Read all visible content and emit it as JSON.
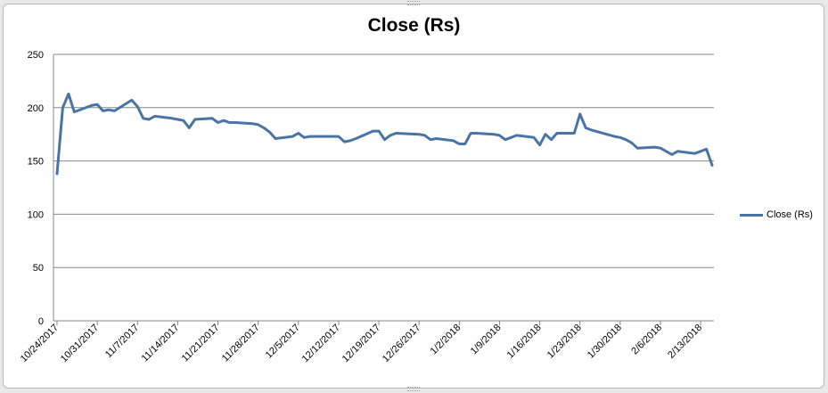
{
  "chart_data": {
    "type": "line",
    "title": "Close (Rs)",
    "xlabel": "",
    "ylabel": "",
    "ylim": [
      0,
      250
    ],
    "yticks": [
      0,
      50,
      100,
      150,
      200,
      250
    ],
    "grid": true,
    "legend_position": "right",
    "line_color": "#4a74a3",
    "xtick_labels": [
      "10/24/2017",
      "10/31/2017",
      "11/7/2017",
      "11/14/2017",
      "11/21/2017",
      "11/28/2017",
      "12/5/2017",
      "12/12/2017",
      "12/19/2017",
      "12/26/2017",
      "1/2/2018",
      "1/9/2018",
      "1/16/2018",
      "1/23/2018",
      "1/30/2018",
      "2/6/2018",
      "2/13/2018"
    ],
    "series": [
      {
        "name": "Close (Rs)",
        "x": [
          "2017-10-24",
          "2017-10-25",
          "2017-10-26",
          "2017-10-27",
          "2017-10-30",
          "2017-10-31",
          "2017-11-01",
          "2017-11-02",
          "2017-11-03",
          "2017-11-06",
          "2017-11-07",
          "2017-11-08",
          "2017-11-09",
          "2017-11-10",
          "2017-11-13",
          "2017-11-14",
          "2017-11-15",
          "2017-11-16",
          "2017-11-17",
          "2017-11-20",
          "2017-11-21",
          "2017-11-22",
          "2017-11-23",
          "2017-11-24",
          "2017-11-27",
          "2017-11-28",
          "2017-11-29",
          "2017-11-30",
          "2017-12-01",
          "2017-12-04",
          "2017-12-05",
          "2017-12-06",
          "2017-12-07",
          "2017-12-08",
          "2017-12-11",
          "2017-12-12",
          "2017-12-13",
          "2017-12-14",
          "2017-12-15",
          "2017-12-18",
          "2017-12-19",
          "2017-12-20",
          "2017-12-21",
          "2017-12-22",
          "2017-12-26",
          "2017-12-27",
          "2017-12-28",
          "2017-12-29",
          "2018-01-01",
          "2018-01-02",
          "2018-01-03",
          "2018-01-04",
          "2018-01-05",
          "2018-01-08",
          "2018-01-09",
          "2018-01-10",
          "2018-01-11",
          "2018-01-12",
          "2018-01-15",
          "2018-01-16",
          "2018-01-17",
          "2018-01-18",
          "2018-01-19",
          "2018-01-22",
          "2018-01-23",
          "2018-01-24",
          "2018-01-25",
          "2018-01-29",
          "2018-01-30",
          "2018-01-31",
          "2018-02-01",
          "2018-02-02",
          "2018-02-05",
          "2018-02-06",
          "2018-02-07",
          "2018-02-08",
          "2018-02-09",
          "2018-02-12",
          "2018-02-14",
          "2018-02-15"
        ],
        "values": [
          138,
          200,
          213,
          196,
          202,
          203,
          197,
          198,
          197,
          207,
          201,
          190,
          189,
          192,
          190,
          189,
          188,
          181,
          189,
          190,
          186,
          188,
          186,
          186,
          185,
          184,
          181,
          177,
          171,
          173,
          176,
          172,
          173,
          173,
          173,
          173,
          168,
          169,
          171,
          178,
          178,
          170,
          174,
          176,
          175,
          174,
          170,
          171,
          169,
          166,
          166,
          176,
          176,
          175,
          174,
          170,
          172,
          174,
          172,
          165,
          175,
          170,
          176,
          176,
          194,
          181,
          179,
          173,
          172,
          170,
          167,
          162,
          163,
          162,
          159,
          156,
          159,
          157,
          161,
          146
        ]
      }
    ]
  }
}
